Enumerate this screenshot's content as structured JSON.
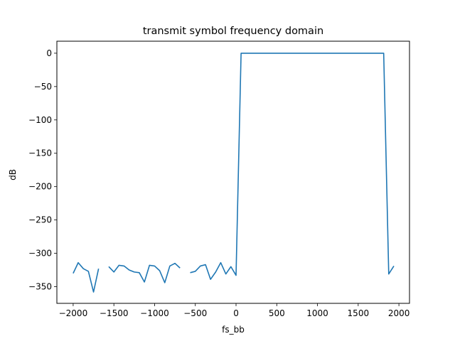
{
  "chart_data": {
    "type": "line",
    "title": "transmit symbol frequency domain",
    "xlabel": "fs_bb",
    "ylabel": "dB",
    "xlim": [
      -2200,
      2130
    ],
    "ylim": [
      -375,
      18
    ],
    "grid": false,
    "xticks": [
      -2000,
      -1500,
      -1000,
      -500,
      0,
      500,
      1000,
      1500,
      2000
    ],
    "xtick_labels": [
      "−2000",
      "−1500",
      "−1000",
      "−500",
      "0",
      "500",
      "1000",
      "1500",
      "2000"
    ],
    "yticks": [
      0,
      -50,
      -100,
      -150,
      -200,
      -250,
      -300,
      -350
    ],
    "ytick_labels": [
      "0",
      "−50",
      "−100",
      "−150",
      "−200",
      "−250",
      "−300",
      "−350"
    ],
    "series": [
      {
        "color": "#1f77b4",
        "segments": [
          [
            [
              -2000,
              -330
            ],
            [
              -1938,
              -314
            ],
            [
              -1875,
              -323
            ],
            [
              -1813,
              -327
            ],
            [
              -1750,
              -358
            ],
            [
              -1688,
              -323
            ]
          ],
          [
            [
              -1563,
              -320
            ],
            [
              -1500,
              -328
            ],
            [
              -1438,
              -318
            ],
            [
              -1375,
              -319
            ],
            [
              -1313,
              -325
            ],
            [
              -1250,
              -328
            ],
            [
              -1188,
              -329
            ],
            [
              -1125,
              -343
            ],
            [
              -1063,
              -318
            ],
            [
              -1000,
              -319
            ],
            [
              -938,
              -326
            ],
            [
              -875,
              -344
            ],
            [
              -813,
              -319
            ],
            [
              -750,
              -315
            ],
            [
              -688,
              -322
            ]
          ],
          [
            [
              -563,
              -329
            ],
            [
              -500,
              -327
            ],
            [
              -438,
              -319
            ],
            [
              -375,
              -317
            ],
            [
              -313,
              -339
            ],
            [
              -250,
              -328
            ],
            [
              -188,
              -314
            ],
            [
              -125,
              -331
            ],
            [
              -63,
              -320
            ],
            [
              0,
              -333
            ],
            [
              62,
              0
            ],
            [
              125,
              0
            ],
            [
              188,
              0
            ],
            [
              250,
              0
            ],
            [
              313,
              0
            ],
            [
              375,
              0
            ],
            [
              438,
              0
            ],
            [
              500,
              0
            ],
            [
              563,
              0
            ],
            [
              625,
              0
            ],
            [
              688,
              0
            ],
            [
              750,
              0
            ],
            [
              813,
              0
            ],
            [
              875,
              0
            ],
            [
              938,
              0
            ],
            [
              1000,
              0
            ],
            [
              1063,
              0
            ],
            [
              1125,
              0
            ],
            [
              1188,
              0
            ],
            [
              1250,
              0
            ],
            [
              1313,
              0
            ],
            [
              1375,
              0
            ],
            [
              1438,
              0
            ],
            [
              1500,
              0
            ],
            [
              1563,
              0
            ],
            [
              1625,
              0
            ],
            [
              1688,
              0
            ],
            [
              1750,
              0
            ],
            [
              1813,
              0
            ],
            [
              1875,
              -331
            ],
            [
              1938,
              -319
            ]
          ]
        ]
      }
    ]
  }
}
